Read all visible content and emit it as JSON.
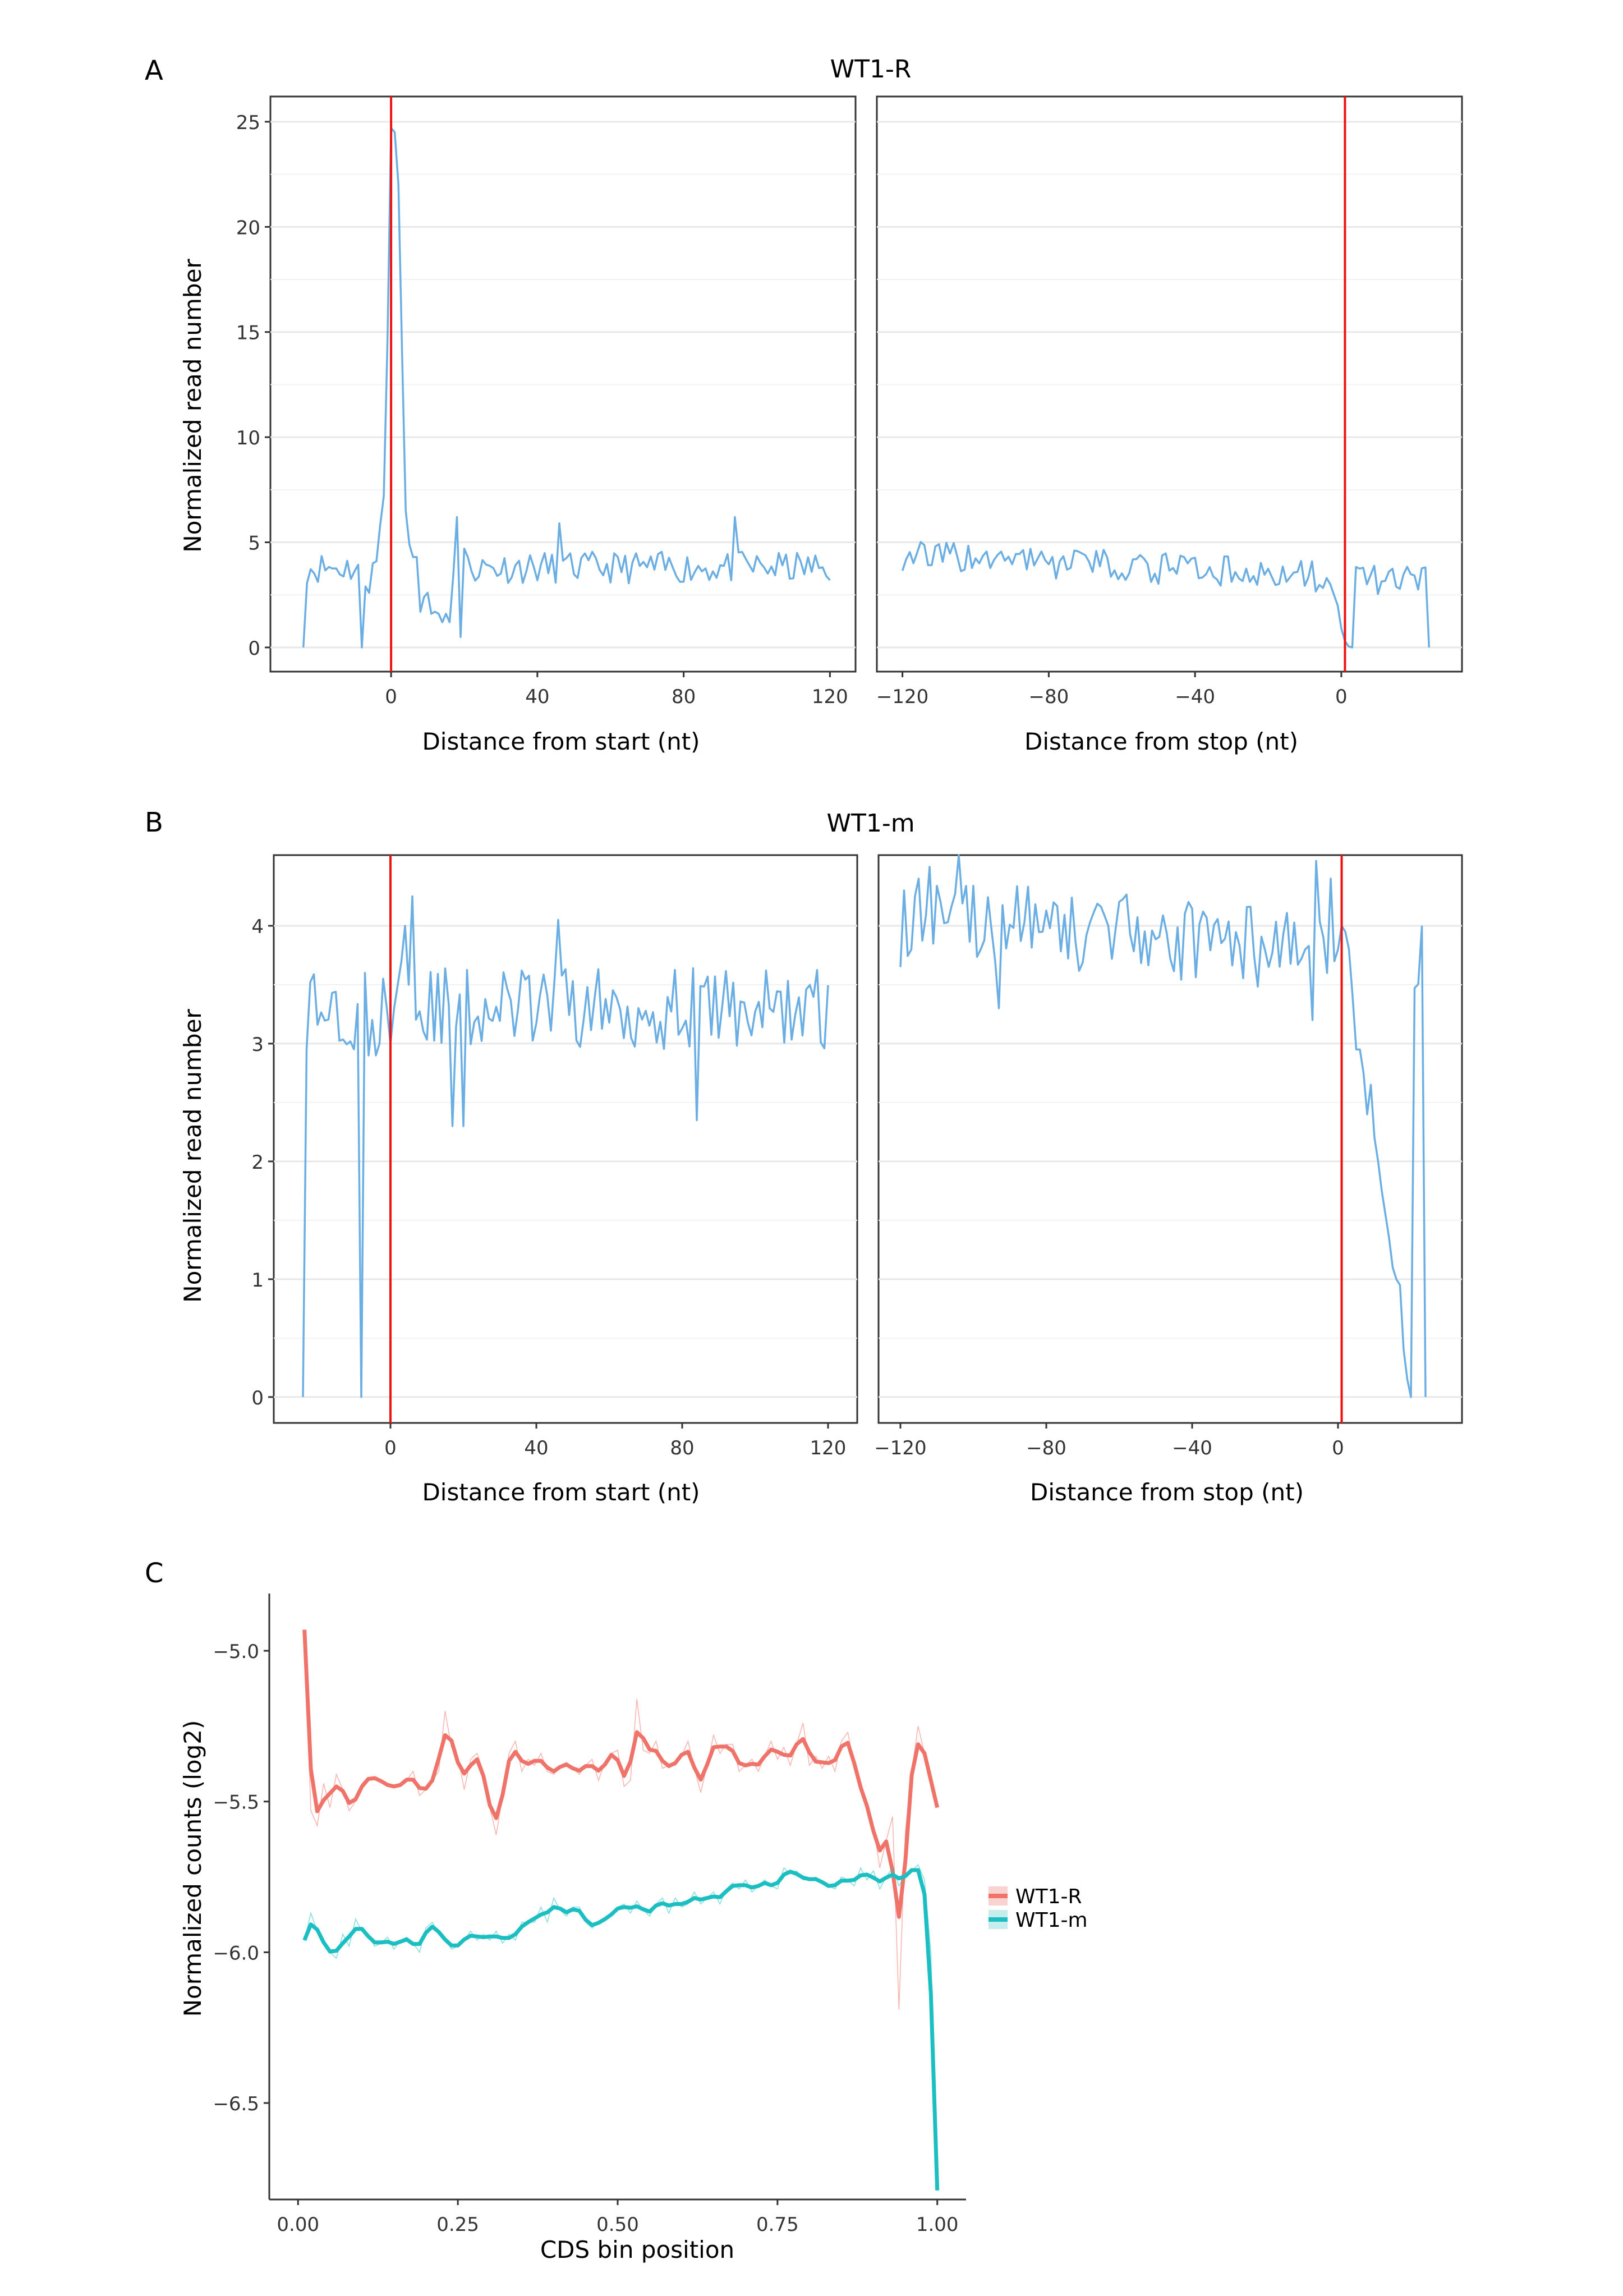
{
  "figure": {
    "panel_labels": [
      "A",
      "B",
      "C"
    ]
  },
  "colors": {
    "line": "#6aaee3",
    "marker": "#ee1111",
    "wt1r": "#f0736a",
    "wt1m": "#1bbfc2",
    "grid": "#e8e8e8",
    "axis": "#333333"
  },
  "chart_data": [
    {
      "id": "A",
      "type": "line",
      "title": "WT1-R",
      "ylabel": "Normalized read number",
      "ylim": [
        -1.15,
        26.2
      ],
      "yticks": [
        0,
        5,
        10,
        15,
        20,
        25
      ],
      "series_base": 3.8,
      "series_noise": 0.75,
      "seed": 11,
      "panels": [
        {
          "name": "start",
          "xlabel": "Distance from start (nt)",
          "xlim": [
            -33,
            127
          ],
          "xticks": [
            0,
            40,
            80,
            120
          ],
          "xtick_labels": [
            "0",
            "40",
            "80",
            "120"
          ],
          "marker_x": 0,
          "range": [
            -24,
            120
          ],
          "anchors": [
            [
              -24,
              0
            ],
            [
              -8,
              0
            ],
            [
              -7,
              2.9
            ],
            [
              -6,
              2.6
            ],
            [
              -5,
              4.0
            ],
            [
              -4,
              4.1
            ],
            [
              -3,
              5.8
            ],
            [
              -2,
              7.2
            ],
            [
              -1,
              14.5
            ],
            [
              0,
              24.7
            ],
            [
              1,
              24.5
            ],
            [
              2,
              22.0
            ],
            [
              3,
              14.0
            ],
            [
              4,
              6.5
            ],
            [
              5,
              4.9
            ],
            [
              6,
              4.3
            ],
            [
              7,
              4.3
            ],
            [
              8,
              1.7
            ],
            [
              9,
              2.4
            ],
            [
              10,
              2.6
            ],
            [
              11,
              1.6
            ],
            [
              12,
              1.7
            ],
            [
              13,
              1.6
            ],
            [
              14,
              1.2
            ],
            [
              15,
              1.6
            ],
            [
              16,
              1.2
            ],
            [
              17,
              3.4
            ],
            [
              18,
              6.2
            ],
            [
              19,
              0.5
            ],
            [
              20,
              4.7
            ],
            [
              46,
              5.9
            ],
            [
              94,
              6.2
            ]
          ]
        },
        {
          "name": "stop",
          "xlabel": "Distance from stop (nt)",
          "xlim": [
            -127,
            33
          ],
          "xticks": [
            -120,
            -80,
            -40,
            0
          ],
          "xtick_labels": [
            "−120",
            "−80",
            "−40",
            "0"
          ],
          "marker_x": 1,
          "range": [
            -120,
            24
          ],
          "anchors": [
            [
              -4,
              3.3
            ],
            [
              -3,
              3.0
            ],
            [
              -2,
              2.5
            ],
            [
              -1,
              2.0
            ],
            [
              0,
              0.9
            ],
            [
              1,
              0.3
            ],
            [
              2,
              0.05
            ],
            [
              3,
              0.0
            ],
            [
              24,
              0.0
            ]
          ]
        }
      ]
    },
    {
      "id": "B",
      "type": "line",
      "title": "WT1-m",
      "ylabel": "Normalized read number",
      "ylim": [
        -0.22,
        4.6
      ],
      "yticks": [
        0,
        1,
        2,
        3,
        4
      ],
      "series_base": 3.3,
      "series_noise": 0.35,
      "seed": 29,
      "panels": [
        {
          "name": "start",
          "xlabel": "Distance from start (nt)",
          "xlim": [
            -32,
            128
          ],
          "xticks": [
            0,
            40,
            80,
            120
          ],
          "xtick_labels": [
            "0",
            "40",
            "80",
            "120"
          ],
          "marker_x": 0,
          "range": [
            -24,
            120
          ],
          "anchors": [
            [
              -24,
              0
            ],
            [
              -8,
              0
            ],
            [
              -7,
              3.6
            ],
            [
              -6,
              2.9
            ],
            [
              -5,
              3.2
            ],
            [
              -4,
              2.9
            ],
            [
              -3,
              3.0
            ],
            [
              -2,
              3.55
            ],
            [
              -1,
              3.3
            ],
            [
              0,
              3.0
            ],
            [
              1,
              3.3
            ],
            [
              2,
              3.5
            ],
            [
              3,
              3.7
            ],
            [
              4,
              4.0
            ],
            [
              5,
              3.5
            ],
            [
              6,
              4.25
            ],
            [
              46,
              4.05
            ],
            [
              17,
              2.3
            ],
            [
              20,
              2.3
            ],
            [
              84,
              2.35
            ]
          ]
        },
        {
          "name": "stop",
          "xlabel": "Distance from stop (nt)",
          "xlim": [
            -126,
            34
          ],
          "xticks": [
            -120,
            -80,
            -40,
            0
          ],
          "xtick_labels": [
            "−120",
            "−80",
            "−40",
            "0"
          ],
          "marker_x": 1,
          "range": [
            -120,
            24
          ],
          "anchors": [
            [
              -120,
              3.65
            ],
            [
              -119,
              4.3
            ],
            [
              -117,
              3.8
            ],
            [
              -115,
              4.4
            ],
            [
              -112,
              4.5
            ],
            [
              -104,
              4.6
            ],
            [
              -93,
              3.3
            ],
            [
              -6,
              4.55
            ],
            [
              -7,
              3.2
            ],
            [
              -4,
              3.9
            ],
            [
              -3,
              3.6
            ],
            [
              -2,
              4.4
            ],
            [
              -1,
              3.7
            ],
            [
              0,
              3.8
            ],
            [
              1,
              4.0
            ],
            [
              2,
              3.95
            ],
            [
              3,
              3.8
            ],
            [
              4,
              3.4
            ],
            [
              5,
              2.95
            ],
            [
              6,
              2.95
            ],
            [
              7,
              2.75
            ],
            [
              8,
              2.4
            ],
            [
              9,
              2.65
            ],
            [
              10,
              2.2
            ],
            [
              11,
              2.0
            ],
            [
              12,
              1.75
            ],
            [
              13,
              1.55
            ],
            [
              14,
              1.35
            ],
            [
              15,
              1.1
            ],
            [
              16,
              1.0
            ],
            [
              17,
              0.95
            ],
            [
              18,
              0.4
            ],
            [
              19,
              0.15
            ],
            [
              20,
              0.0
            ],
            [
              24,
              0.0
            ]
          ]
        }
      ]
    },
    {
      "id": "C",
      "type": "line",
      "title": "",
      "xlabel": "CDS bin position",
      "ylabel": "Normalized counts (log2)",
      "xlim": [
        -0.045,
        1.045
      ],
      "ylim": [
        -6.82,
        -4.81
      ],
      "xticks": [
        0,
        0.25,
        0.5,
        0.75,
        1
      ],
      "xtick_labels": [
        "0.00",
        "0.25",
        "0.50",
        "0.75",
        "1.00"
      ],
      "yticks": [
        -5.0,
        -5.5,
        -6.0,
        -6.5
      ],
      "ytick_labels": [
        "−5.0",
        "−5.5",
        "−6.0",
        "−6.5"
      ],
      "legend": {
        "position": "right",
        "entries": [
          "WT1-R",
          "WT1-m"
        ]
      },
      "series": [
        {
          "name": "WT1-R",
          "x": [
            0.01,
            0.02,
            0.03,
            0.04,
            0.05,
            0.06,
            0.07,
            0.08,
            0.09,
            0.1,
            0.11,
            0.12,
            0.13,
            0.14,
            0.15,
            0.16,
            0.17,
            0.18,
            0.19,
            0.2,
            0.21,
            0.22,
            0.23,
            0.24,
            0.25,
            0.26,
            0.27,
            0.28,
            0.29,
            0.3,
            0.31,
            0.32,
            0.33,
            0.34,
            0.35,
            0.36,
            0.37,
            0.38,
            0.39,
            0.4,
            0.41,
            0.42,
            0.43,
            0.44,
            0.45,
            0.46,
            0.47,
            0.48,
            0.49,
            0.5,
            0.51,
            0.52,
            0.53,
            0.54,
            0.55,
            0.56,
            0.57,
            0.58,
            0.59,
            0.6,
            0.61,
            0.62,
            0.63,
            0.64,
            0.65,
            0.66,
            0.67,
            0.68,
            0.69,
            0.7,
            0.71,
            0.72,
            0.73,
            0.74,
            0.75,
            0.76,
            0.77,
            0.78,
            0.79,
            0.8,
            0.81,
            0.82,
            0.83,
            0.84,
            0.85,
            0.86,
            0.87,
            0.88,
            0.89,
            0.9,
            0.91,
            0.92,
            0.93,
            0.94,
            0.95,
            0.96,
            0.97,
            0.98,
            0.99,
            1.0
          ],
          "values": [
            -4.93,
            -5.53,
            -5.58,
            -5.44,
            -5.52,
            -5.41,
            -5.46,
            -5.53,
            -5.5,
            -5.44,
            -5.42,
            -5.42,
            -5.43,
            -5.45,
            -5.45,
            -5.45,
            -5.43,
            -5.4,
            -5.48,
            -5.46,
            -5.43,
            -5.4,
            -5.2,
            -5.32,
            -5.35,
            -5.46,
            -5.36,
            -5.34,
            -5.4,
            -5.52,
            -5.61,
            -5.48,
            -5.34,
            -5.3,
            -5.4,
            -5.36,
            -5.38,
            -5.34,
            -5.4,
            -5.41,
            -5.38,
            -5.37,
            -5.39,
            -5.41,
            -5.38,
            -5.36,
            -5.43,
            -5.37,
            -5.34,
            -5.33,
            -5.45,
            -5.43,
            -5.16,
            -5.33,
            -5.34,
            -5.3,
            -5.39,
            -5.38,
            -5.38,
            -5.35,
            -5.3,
            -5.39,
            -5.47,
            -5.38,
            -5.28,
            -5.34,
            -5.31,
            -5.31,
            -5.4,
            -5.38,
            -5.36,
            -5.4,
            -5.35,
            -5.3,
            -5.36,
            -5.32,
            -5.38,
            -5.31,
            -5.24,
            -5.38,
            -5.35,
            -5.39,
            -5.35,
            -5.4,
            -5.3,
            -5.27,
            -5.38,
            -5.46,
            -5.51,
            -5.58,
            -5.72,
            -5.63,
            -5.55,
            -6.19,
            -5.6,
            -5.4,
            -5.25,
            -5.34,
            -5.43,
            -5.52
          ]
        },
        {
          "name": "WT1-m",
          "x": [
            0.01,
            0.02,
            0.03,
            0.04,
            0.05,
            0.06,
            0.07,
            0.08,
            0.09,
            0.1,
            0.11,
            0.12,
            0.13,
            0.14,
            0.15,
            0.16,
            0.17,
            0.18,
            0.19,
            0.2,
            0.21,
            0.22,
            0.23,
            0.24,
            0.25,
            0.26,
            0.27,
            0.28,
            0.29,
            0.3,
            0.31,
            0.32,
            0.33,
            0.34,
            0.35,
            0.36,
            0.37,
            0.38,
            0.39,
            0.4,
            0.41,
            0.42,
            0.43,
            0.44,
            0.45,
            0.46,
            0.47,
            0.48,
            0.49,
            0.5,
            0.51,
            0.52,
            0.53,
            0.54,
            0.55,
            0.56,
            0.57,
            0.58,
            0.59,
            0.6,
            0.61,
            0.62,
            0.63,
            0.64,
            0.65,
            0.66,
            0.67,
            0.68,
            0.69,
            0.7,
            0.71,
            0.72,
            0.73,
            0.74,
            0.75,
            0.76,
            0.77,
            0.78,
            0.79,
            0.8,
            0.81,
            0.82,
            0.83,
            0.84,
            0.85,
            0.86,
            0.87,
            0.88,
            0.89,
            0.9,
            0.91,
            0.92,
            0.93,
            0.94,
            0.95,
            0.96,
            0.97,
            0.98,
            0.99,
            1.0
          ],
          "values": [
            -5.96,
            -5.87,
            -5.93,
            -5.97,
            -6.0,
            -6.02,
            -5.94,
            -5.98,
            -5.89,
            -5.93,
            -5.94,
            -5.98,
            -5.97,
            -5.95,
            -5.99,
            -5.96,
            -5.95,
            -5.97,
            -6.0,
            -5.92,
            -5.9,
            -5.94,
            -5.95,
            -5.99,
            -5.98,
            -5.96,
            -5.93,
            -5.96,
            -5.94,
            -5.96,
            -5.93,
            -5.97,
            -5.94,
            -5.96,
            -5.9,
            -5.9,
            -5.9,
            -5.85,
            -5.9,
            -5.82,
            -5.86,
            -5.88,
            -5.85,
            -5.85,
            -5.9,
            -5.92,
            -5.9,
            -5.89,
            -5.88,
            -5.85,
            -5.84,
            -5.87,
            -5.83,
            -5.86,
            -5.88,
            -5.84,
            -5.82,
            -5.87,
            -5.82,
            -5.85,
            -5.84,
            -5.8,
            -5.84,
            -5.82,
            -5.8,
            -5.84,
            -5.79,
            -5.77,
            -5.79,
            -5.76,
            -5.8,
            -5.78,
            -5.76,
            -5.78,
            -5.79,
            -5.72,
            -5.74,
            -5.73,
            -5.76,
            -5.76,
            -5.75,
            -5.77,
            -5.78,
            -5.79,
            -5.75,
            -5.76,
            -5.78,
            -5.72,
            -5.76,
            -5.73,
            -5.79,
            -5.75,
            -5.72,
            -5.78,
            -5.74,
            -5.73,
            -5.71,
            -5.76,
            -6.0,
            -6.79
          ]
        }
      ]
    }
  ]
}
